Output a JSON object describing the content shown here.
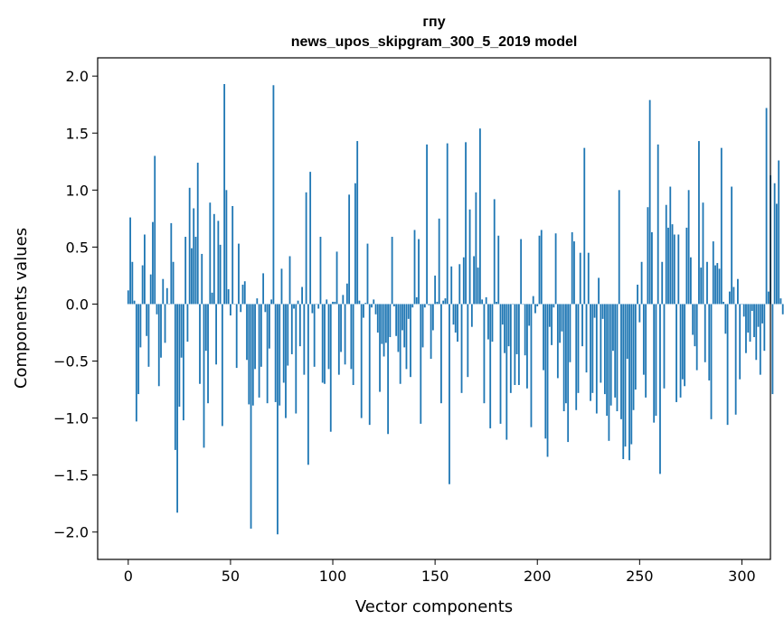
{
  "chart_data": {
    "type": "bar",
    "title": "гпу",
    "subtitle": "news_upos_skipgram_300_5_2019 model",
    "xlabel": "Vector components",
    "ylabel": "Components values",
    "xlim": [
      -14.95,
      313.95
    ],
    "ylim": [
      -2.24,
      2.16
    ],
    "xticks": [
      0,
      50,
      100,
      150,
      200,
      250,
      300
    ],
    "yticks": [
      -2.0,
      -1.5,
      -1.0,
      -0.5,
      0.0,
      0.5,
      1.0,
      1.5,
      2.0
    ],
    "ytick_labels": [
      "−2.0",
      "−1.5",
      "−1.0",
      "−0.5",
      "0.0",
      "0.5",
      "1.0",
      "1.5",
      "2.0"
    ],
    "grid": false,
    "bar_color": "#1f77b4",
    "values": [
      0.12,
      0.76,
      0.37,
      0.03,
      -1.03,
      -0.79,
      -0.38,
      0.34,
      0.61,
      -0.28,
      -0.55,
      0.26,
      0.72,
      1.3,
      -0.09,
      -0.72,
      -0.47,
      0.22,
      -0.34,
      0.14,
      0.0,
      0.71,
      0.37,
      -1.28,
      -1.83,
      -0.9,
      -0.47,
      -1.02,
      0.59,
      -0.33,
      1.02,
      0.49,
      0.84,
      0.59,
      1.24,
      -0.7,
      0.44,
      -1.26,
      -0.41,
      -0.87,
      0.89,
      0.1,
      0.79,
      -0.53,
      0.73,
      0.52,
      -1.07,
      1.93,
      1.0,
      0.13,
      -0.1,
      0.86,
      0.0,
      -0.56,
      0.53,
      -0.07,
      0.17,
      0.2,
      -0.49,
      -0.88,
      -1.97,
      -0.89,
      -0.57,
      0.05,
      -0.82,
      -0.55,
      0.27,
      -0.07,
      -0.87,
      -0.39,
      0.04,
      1.92,
      -0.86,
      -2.02,
      -0.89,
      0.31,
      -0.69,
      -1.0,
      -0.54,
      0.42,
      -0.44,
      -0.04,
      -0.96,
      0.03,
      -0.37,
      0.15,
      -0.62,
      0.98,
      -1.41,
      1.16,
      -0.08,
      -0.55,
      0.0,
      -0.04,
      0.59,
      -0.69,
      -0.7,
      0.04,
      -0.57,
      -1.12,
      0.02,
      0.02,
      0.46,
      -0.62,
      -0.42,
      0.08,
      -0.53,
      0.18,
      0.96,
      -0.57,
      -0.71,
      1.06,
      1.43,
      0.03,
      -1.0,
      -0.12,
      0.01,
      0.53,
      -1.06,
      -0.03,
      0.04,
      -0.09,
      -0.25,
      -0.77,
      -0.35,
      -0.46,
      -0.34,
      -1.14,
      -0.29,
      0.59,
      -0.02,
      -0.28,
      -0.42,
      -0.7,
      -0.23,
      -0.38,
      -0.57,
      -0.13,
      -0.64,
      -0.03,
      0.65,
      0.06,
      0.57,
      -1.05,
      -0.38,
      -0.03,
      1.4,
      -0.01,
      -0.48,
      -0.23,
      0.25,
      0.02,
      0.75,
      -0.87,
      0.03,
      0.05,
      1.41,
      -1.58,
      0.33,
      -0.18,
      -0.25,
      -0.33,
      0.35,
      -0.78,
      0.41,
      1.42,
      -0.64,
      0.83,
      -0.2,
      0.42,
      0.98,
      0.32,
      1.54,
      0.04,
      -0.87,
      0.06,
      -0.31,
      -1.09,
      -0.33,
      0.92,
      0.02,
      0.6,
      -1.05,
      -0.18,
      -0.43,
      -1.19,
      -0.37,
      -0.78,
      0.0,
      -0.71,
      -0.44,
      -0.71,
      0.57,
      0.0,
      -0.45,
      -0.74,
      -0.19,
      -1.08,
      0.07,
      -0.08,
      -0.02,
      0.6,
      0.65,
      -0.58,
      -1.18,
      -1.34,
      -0.2,
      -0.36,
      -0.03,
      0.62,
      -0.65,
      -0.34,
      -0.24,
      -0.94,
      -0.87,
      -1.21,
      -0.51,
      0.63,
      0.55,
      -0.93,
      -0.78,
      0.45,
      -0.37,
      1.37,
      -0.6,
      0.45,
      -0.85,
      -0.78,
      -0.12,
      -0.96,
      0.23,
      -0.69,
      -0.13,
      -0.79,
      -0.98,
      -1.2,
      -0.89,
      -0.41,
      -0.82,
      -0.94,
      1.0,
      -1.01,
      -1.36,
      -1.25,
      -0.48,
      -1.37,
      -1.23,
      -0.93,
      -0.75,
      0.17,
      -0.16,
      0.37,
      -0.62,
      -0.82,
      0.85,
      1.79,
      0.63,
      -1.04,
      -0.98,
      1.4,
      -1.49,
      0.37,
      -0.74,
      0.87,
      0.67,
      1.03,
      0.7,
      0.61,
      -0.86,
      0.61,
      -0.82,
      -0.66,
      -0.72,
      0.67,
      1.0,
      0.41,
      -0.27,
      -0.37,
      -0.58,
      1.43,
      0.32,
      0.89,
      -0.51,
      0.37,
      -0.67,
      -1.01,
      0.55,
      0.34,
      0.36,
      0.31,
      1.37,
      0.02,
      -0.26,
      -1.06,
      0.11,
      1.03,
      0.15,
      -0.97,
      0.22,
      -0.66,
      0.0,
      -0.11,
      -0.43,
      -0.25,
      -0.33,
      -0.06,
      -0.29,
      -0.49,
      -0.2,
      -0.62,
      -0.17,
      -0.41,
      1.72,
      0.11,
      1.13,
      -0.79,
      1.06,
      0.88,
      1.26,
      0.05,
      -0.09,
      0.1,
      0.06,
      0.03,
      0.01,
      0.03
    ]
  }
}
